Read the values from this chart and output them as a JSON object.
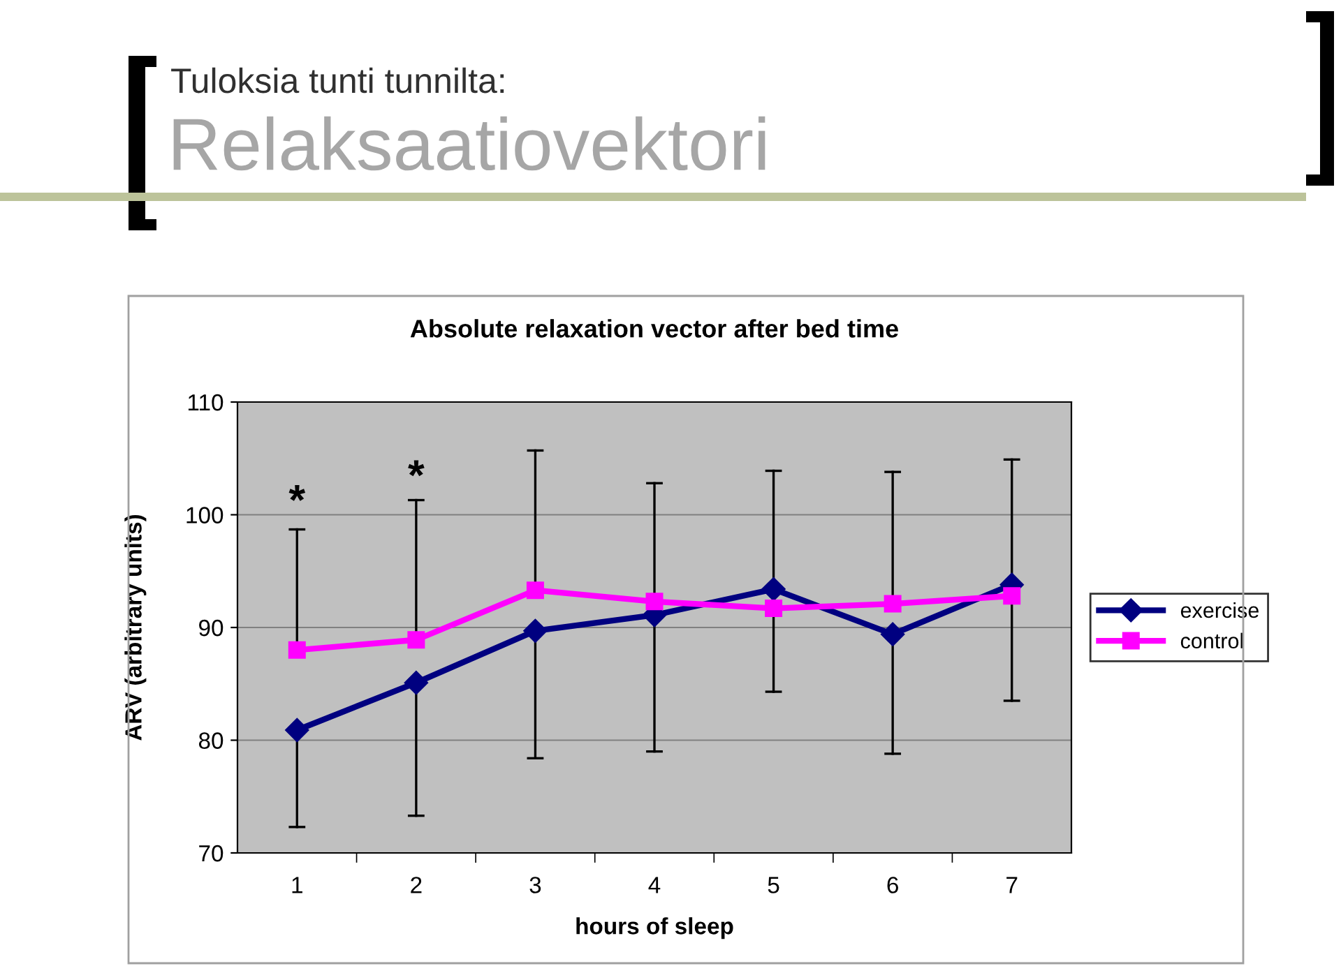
{
  "chart_data": {
    "type": "line",
    "title": "Absolute relaxation vector after bed time",
    "xlabel": "hours of sleep",
    "ylabel": "ARV (arbitrary units)",
    "annotations": [
      "Tuloksia tunti tunnilta:",
      "Relaksaatiovektori",
      "*",
      "*"
    ],
    "categories": [
      "1",
      "2",
      "3",
      "4",
      "5",
      "6",
      "7"
    ],
    "series": [
      {
        "name": "exercise",
        "color": "#000080",
        "marker": "diamond",
        "values": [
          80.9,
          85.1,
          89.7,
          91.1,
          93.4,
          89.4,
          93.8
        ],
        "errors": [
          [
            72.3,
            80.9
          ],
          [
            73.3,
            85.1
          ],
          [
            78.4,
            89.7
          ],
          [
            79.0,
            91.1
          ],
          [
            84.3,
            93.4
          ],
          [
            78.8,
            89.4
          ],
          [
            83.5,
            93.8
          ]
        ]
      },
      {
        "name": "control",
        "color": "#ff00ff",
        "marker": "square",
        "values": [
          88.0,
          88.9,
          93.3,
          92.3,
          91.7,
          92.1,
          92.8
        ],
        "errors": [
          [
            88.0,
            98.7
          ],
          [
            88.9,
            101.3
          ],
          [
            93.3,
            105.7
          ],
          [
            92.3,
            102.8
          ],
          [
            91.7,
            103.9
          ],
          [
            92.1,
            103.8
          ],
          [
            92.8,
            104.9
          ]
        ]
      }
    ],
    "ylim": [
      70,
      110
    ],
    "yticks": [
      70,
      80,
      90,
      100,
      110
    ],
    "grid": "y",
    "legend": "right",
    "line_style": "solid"
  }
}
